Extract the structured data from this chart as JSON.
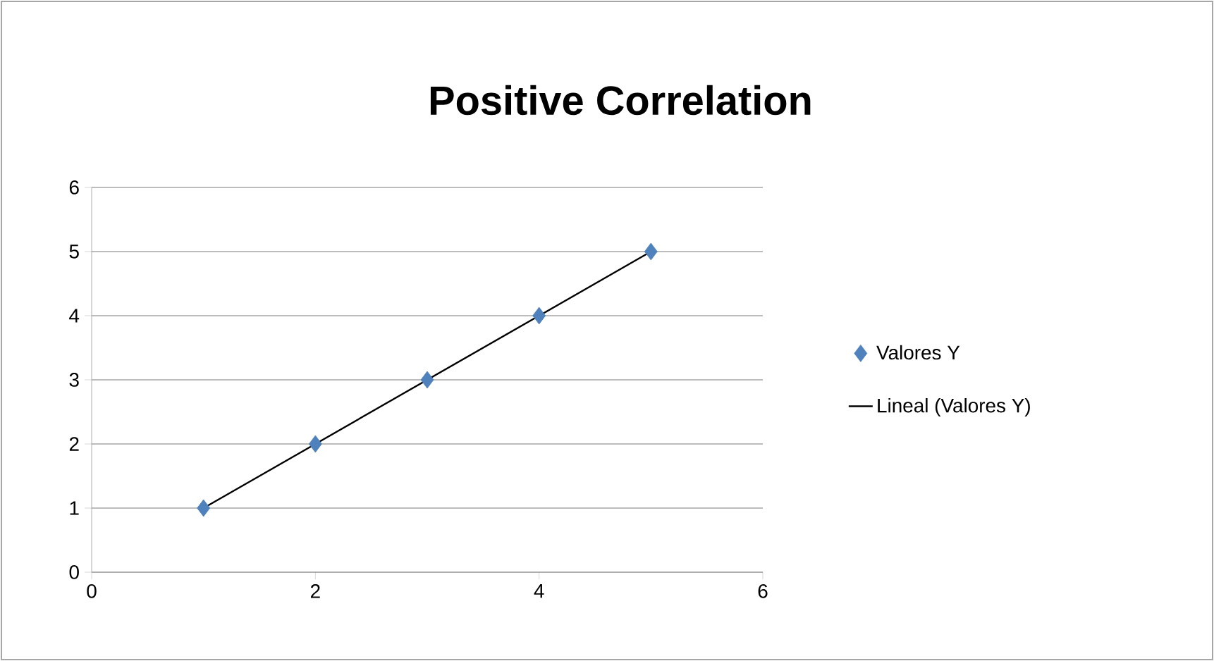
{
  "chart_data": {
    "type": "scatter",
    "title": "Positive Correlation",
    "series": [
      {
        "name": "Valores Y",
        "color": "#4f81bd",
        "marker": "diamond",
        "x": [
          1,
          2,
          3,
          4,
          5
        ],
        "values": [
          1,
          2,
          3,
          4,
          5
        ]
      },
      {
        "name": "Lineal (Valores Y)",
        "type": "line",
        "color": "#000000",
        "line_style": "solid",
        "x": [
          1,
          5
        ],
        "values": [
          1,
          5
        ]
      }
    ],
    "xlim": [
      0,
      6
    ],
    "ylim": [
      0,
      6
    ],
    "xticks": [
      0,
      2,
      4,
      6
    ],
    "yticks": [
      0,
      1,
      2,
      3,
      4,
      5,
      6
    ],
    "grid": "y",
    "legend": "right"
  }
}
